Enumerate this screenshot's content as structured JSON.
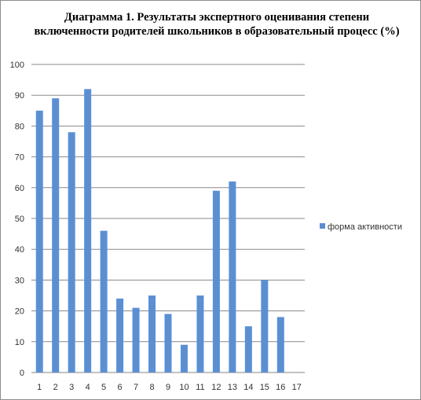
{
  "chart_data": {
    "type": "bar",
    "title": "Диаграмма 1. Результаты экспертного оценивания степени включенности родителей школьников в образовательный процесс (%)",
    "categories": [
      "1",
      "2",
      "3",
      "4",
      "5",
      "6",
      "7",
      "8",
      "9",
      "10",
      "11",
      "12",
      "13",
      "14",
      "15",
      "16",
      "17"
    ],
    "series": [
      {
        "name": "форма активности",
        "color": "#5b8fd4",
        "values": [
          85,
          89,
          78,
          92,
          46,
          24,
          21,
          25,
          19,
          9,
          25,
          59,
          62,
          15,
          30,
          18,
          null
        ]
      }
    ],
    "yticks": [
      "0",
      "10",
      "20",
      "30",
      "40",
      "50",
      "60",
      "70",
      "80",
      "90",
      "100"
    ],
    "ylim": [
      0,
      100
    ],
    "grid": true,
    "legend_position": "right"
  }
}
